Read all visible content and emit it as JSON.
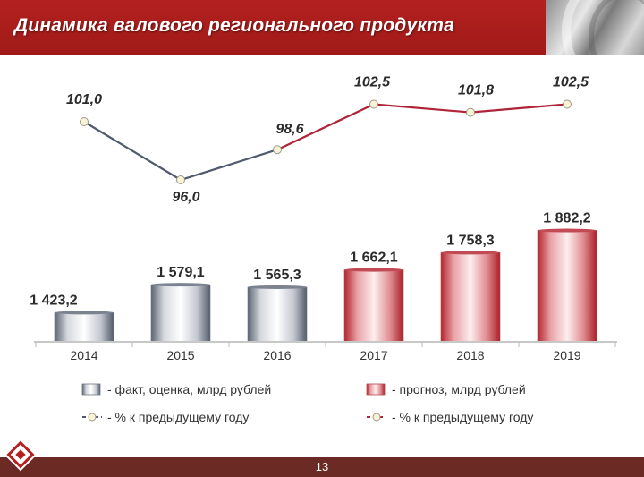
{
  "header": {
    "title": "Динамика валового регионального продукта"
  },
  "footer": {
    "page_number": "13"
  },
  "colors": {
    "header_bg": "#b3211f",
    "fact_line": "#4f5a6c",
    "forecast_line": "#b0243a",
    "fact_bar": "#b9bdc6",
    "forecast_bar": "#d9505a",
    "footer_bg": "#6b2b24"
  },
  "chart_data": [
    {
      "type": "bar",
      "categories": [
        "2014",
        "2015",
        "2016",
        "2017",
        "2018",
        "2019"
      ],
      "series": [
        {
          "name": "- факт, оценка, млрд рублей",
          "values": [
            1423.2,
            1579.1,
            1565.3,
            null,
            null,
            null
          ]
        },
        {
          "name": "- прогноз, млрд рублей",
          "values": [
            null,
            null,
            null,
            1662.1,
            1758.3,
            1882.2
          ]
        }
      ],
      "data_labels": [
        "1 423,2",
        "1 579,1",
        "1 565,3",
        "1 662,1",
        "1 758,3",
        "1 882,2"
      ],
      "ylim": [
        0,
        1900
      ]
    },
    {
      "type": "line",
      "categories": [
        "2014",
        "2015",
        "2016",
        "2017",
        "2018",
        "2019"
      ],
      "series": [
        {
          "name": "- % к предыдущему году",
          "values": [
            101.0,
            96.0,
            98.6,
            null,
            null,
            null
          ]
        },
        {
          "name": "- % к предыдущему году",
          "values": [
            null,
            null,
            98.6,
            102.5,
            101.8,
            102.5
          ]
        }
      ],
      "data_labels": [
        "101,0",
        "96,0",
        "98,6",
        "102,5",
        "101,8",
        "102,5"
      ],
      "ylim": [
        95,
        104
      ]
    }
  ]
}
